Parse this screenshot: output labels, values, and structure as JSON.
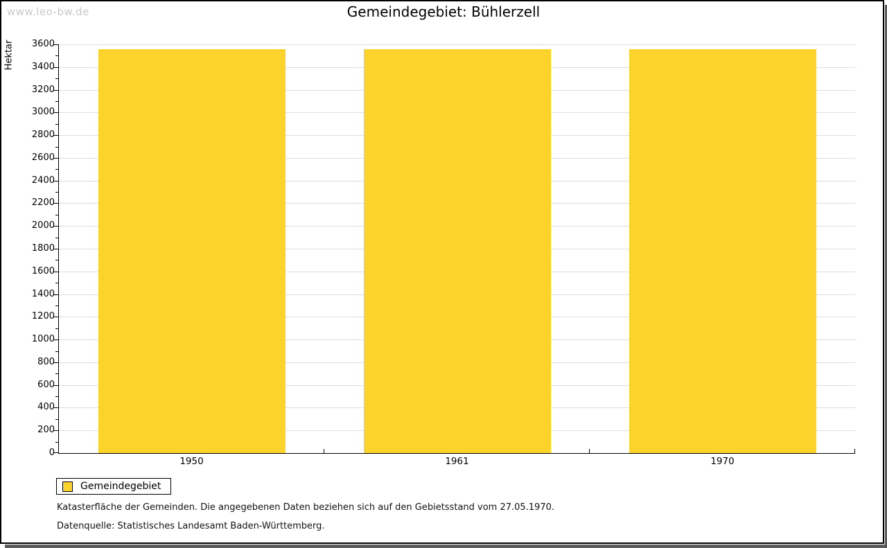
{
  "page": {
    "watermark": "www.leo-bw.de",
    "title": "Gemeindegebiet: Bühlerzell"
  },
  "chart_data": {
    "type": "bar",
    "title": "Gemeindegebiet: Bühlerzell",
    "ylabel": "Hektar",
    "xlabel": "",
    "categories": [
      "1950",
      "1961",
      "1970"
    ],
    "series": [
      {
        "name": "Gemeindegebiet",
        "values": [
          3560,
          3560,
          3560
        ]
      }
    ],
    "ylim": [
      0,
      3600
    ],
    "ytick_step": 200,
    "yminor_step": 100,
    "grid": true,
    "legend_position": "bottom-left",
    "bar_color": "#FCD32B"
  },
  "legend": {
    "items": [
      {
        "label": "Gemeindegebiet",
        "color": "#FCD32B"
      }
    ]
  },
  "footnotes": {
    "line1": "Katasterfläche der Gemeinden. Die angegebenen Daten beziehen sich auf den Gebietsstand vom 27.05.1970.",
    "line2": "Datenquelle: Statistisches Landesamt Baden-Württemberg."
  },
  "colors": {
    "bar": "#FCD32B",
    "grid": "#DDDDDD",
    "axis": "#000000",
    "watermark": "#C9C9C9",
    "shadow": "#5B5B5B"
  }
}
